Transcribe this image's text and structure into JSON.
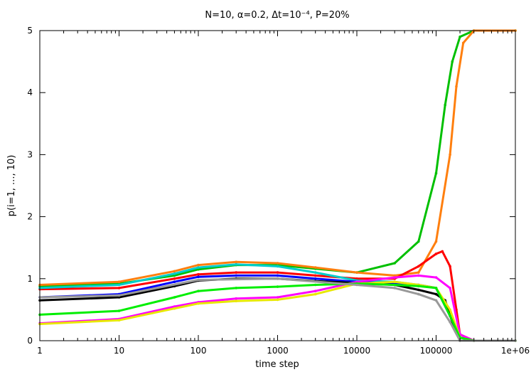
{
  "chart_data": {
    "type": "line",
    "title": "N=10, α=0.2, Δt=10⁻⁴, P=20%",
    "xlabel": "time step",
    "ylabel": "p(i=1, ..., 10)",
    "xscale": "log",
    "xlim": [
      1,
      1000000
    ],
    "ylim": [
      0,
      5
    ],
    "xticks": [
      "1",
      "10",
      "100",
      "1000",
      "10000",
      "100000",
      "1e+06"
    ],
    "yticks": [
      "0",
      "1",
      "2",
      "3",
      "4",
      "5"
    ],
    "grid": false,
    "legend": "none",
    "series": [
      {
        "color": "#00c000",
        "x": [
          1,
          10,
          50,
          100,
          300,
          1000,
          3000,
          10000,
          30000,
          60000,
          100000,
          130000,
          160000,
          200000,
          300000,
          1000000
        ],
        "y": [
          0.88,
          0.92,
          1.05,
          1.15,
          1.22,
          1.22,
          1.16,
          1.1,
          1.25,
          1.6,
          2.7,
          3.8,
          4.5,
          4.9,
          5.0,
          5.0
        ]
      },
      {
        "color": "#ff7f0e",
        "x": [
          1,
          10,
          50,
          100,
          300,
          1000,
          3000,
          10000,
          30000,
          60000,
          100000,
          150000,
          180000,
          220000,
          300000,
          1000000
        ],
        "y": [
          0.9,
          0.95,
          1.12,
          1.22,
          1.27,
          1.25,
          1.18,
          1.1,
          1.05,
          1.1,
          1.6,
          3.0,
          4.1,
          4.8,
          5.0,
          5.0
        ]
      },
      {
        "color": "#ff0000",
        "x": [
          1,
          10,
          50,
          100,
          300,
          1000,
          3000,
          10000,
          30000,
          60000,
          100000,
          120000,
          150000,
          180000,
          200000,
          300000,
          1000000
        ],
        "y": [
          0.83,
          0.85,
          1.0,
          1.07,
          1.1,
          1.1,
          1.05,
          1.0,
          1.0,
          1.2,
          1.4,
          1.44,
          1.2,
          0.5,
          0.1,
          0.0,
          0.0
        ]
      },
      {
        "color": "#00cccc",
        "x": [
          1,
          10,
          50,
          100,
          300,
          1000,
          3000,
          10000,
          30000,
          60000,
          100000,
          150000,
          200000,
          300000,
          1000000
        ],
        "y": [
          0.85,
          0.9,
          1.08,
          1.18,
          1.23,
          1.2,
          1.1,
          0.97,
          0.95,
          0.9,
          0.85,
          0.4,
          0.05,
          0.0,
          0.0
        ]
      },
      {
        "color": "#0000ff",
        "x": [
          1,
          10,
          50,
          100,
          300,
          1000,
          3000,
          10000,
          30000,
          60000,
          100000,
          150000,
          200000,
          300000,
          1000000
        ],
        "y": [
          0.7,
          0.75,
          0.95,
          1.03,
          1.05,
          1.05,
          1.0,
          0.95,
          0.92,
          0.9,
          0.85,
          0.4,
          0.05,
          0.0,
          0.0
        ]
      },
      {
        "color": "#000000",
        "x": [
          1,
          10,
          50,
          100,
          300,
          1000,
          3000,
          10000,
          30000,
          60000,
          100000,
          130000,
          170000,
          200000,
          300000,
          1000000
        ],
        "y": [
          0.65,
          0.7,
          0.88,
          0.97,
          1.0,
          1.0,
          0.96,
          0.93,
          0.9,
          0.82,
          0.75,
          0.65,
          0.2,
          0.0,
          0.0,
          0.0
        ]
      },
      {
        "color": "#ff00ff",
        "x": [
          1,
          10,
          50,
          100,
          300,
          1000,
          3000,
          10000,
          30000,
          60000,
          100000,
          150000,
          200000,
          300000,
          1000000
        ],
        "y": [
          0.28,
          0.35,
          0.55,
          0.62,
          0.68,
          0.7,
          0.8,
          0.95,
          1.02,
          1.05,
          1.02,
          0.85,
          0.1,
          0.0,
          0.0
        ]
      },
      {
        "color": "#e8e800",
        "x": [
          1,
          10,
          50,
          100,
          300,
          1000,
          3000,
          10000,
          30000,
          60000,
          100000,
          150000,
          200000,
          300000,
          1000000
        ],
        "y": [
          0.27,
          0.33,
          0.52,
          0.6,
          0.64,
          0.66,
          0.75,
          0.92,
          0.95,
          0.9,
          0.85,
          0.5,
          0.05,
          0.0,
          0.0
        ]
      },
      {
        "color": "#00ee00",
        "x": [
          1,
          10,
          50,
          100,
          300,
          1000,
          3000,
          10000,
          30000,
          60000,
          100000,
          150000,
          200000,
          300000,
          1000000
        ],
        "y": [
          0.42,
          0.48,
          0.7,
          0.8,
          0.85,
          0.87,
          0.9,
          0.92,
          0.9,
          0.88,
          0.85,
          0.4,
          0.05,
          0.0,
          0.0
        ]
      },
      {
        "color": "#999999",
        "x": [
          1,
          10,
          100,
          1000,
          10000,
          30000,
          60000,
          100000,
          150000,
          200000,
          300000,
          1000000
        ],
        "y": [
          0.7,
          0.73,
          0.98,
          1.0,
          0.9,
          0.85,
          0.75,
          0.65,
          0.3,
          0.0,
          0.0,
          0.0
        ]
      }
    ]
  }
}
